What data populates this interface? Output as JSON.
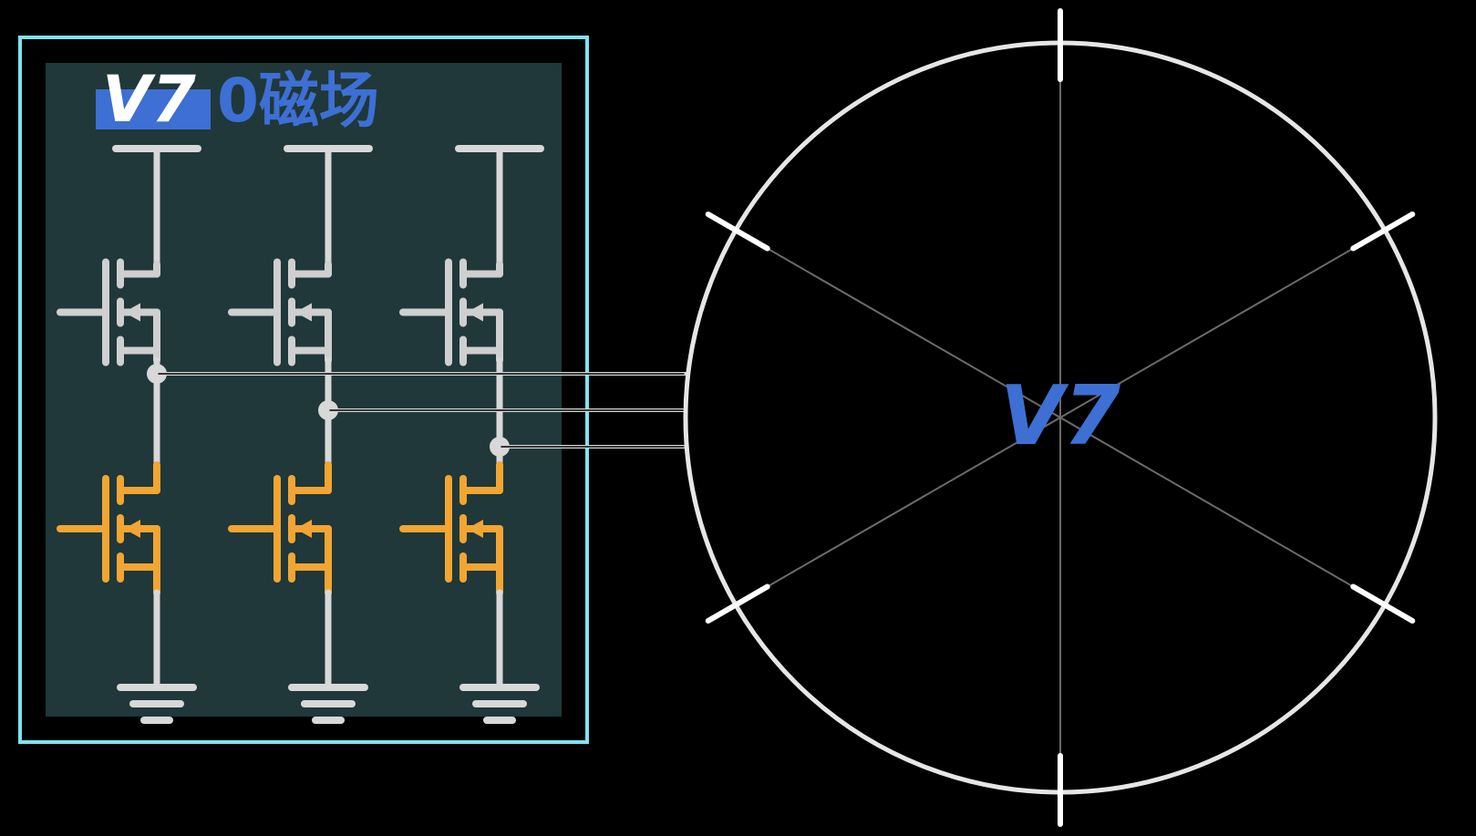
{
  "vector_badge": "V7",
  "title_text": "0磁场",
  "center_label": "V7",
  "colors": {
    "background": "#000000",
    "panel_fill": "#203839",
    "panel_border": "#7fe3ef",
    "wire": "#d8d8d8",
    "high_side_fet": "#cfcfcf",
    "low_side_fet": "#f2a532",
    "accent_blue": "#3d6fd4",
    "circle": "#e6e6e6",
    "spoke": "#6b6b6b"
  },
  "icons": {
    "high_side": "nmos-transistor-icon",
    "low_side": "nmos-transistor-icon",
    "supply": "supply-rail-icon",
    "ground": "ground-icon"
  }
}
